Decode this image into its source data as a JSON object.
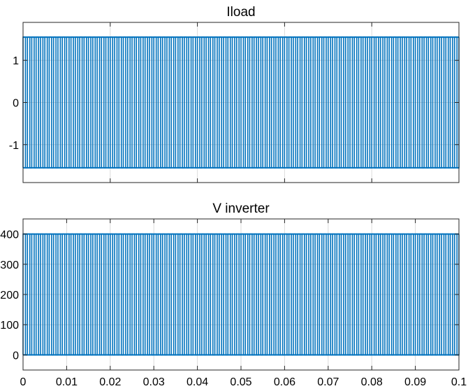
{
  "chart_data": [
    {
      "type": "line",
      "title": "Iload",
      "xlabel": "",
      "ylabel": "",
      "xlim": [
        0,
        0.1
      ],
      "ylim": [
        -1.9,
        1.9
      ],
      "x_ticks": [
        0,
        0.02,
        0.04,
        0.06,
        0.08,
        0.1
      ],
      "x_tick_labels": [],
      "y_ticks": [
        1,
        0,
        -1
      ],
      "y_tick_labels": [
        "1",
        "0",
        "-1"
      ],
      "grid": true,
      "series": [
        {
          "pulse_high": 1.55,
          "pulse_low": -1.55,
          "pulse_count": 100,
          "x_start": 0,
          "x_end": 0.1
        }
      ]
    },
    {
      "type": "line",
      "title": "V inverter",
      "xlabel": "",
      "ylabel": "",
      "xlim": [
        0,
        0.1
      ],
      "ylim": [
        -50,
        450
      ],
      "x_ticks": [
        0,
        0.01,
        0.02,
        0.03,
        0.04,
        0.05,
        0.06,
        0.07,
        0.08,
        0.09,
        0.1
      ],
      "x_tick_labels": [
        "0",
        "0.01",
        "0.02",
        "0.03",
        "0.04",
        "0.05",
        "0.06",
        "0.07",
        "0.08",
        "0.09",
        "0.1"
      ],
      "y_ticks": [
        400,
        300,
        200,
        100,
        0
      ],
      "y_tick_labels": [
        "400",
        "300",
        "200",
        "100",
        "0"
      ],
      "grid": true,
      "series": [
        {
          "pulse_high": 400,
          "pulse_low": 0,
          "pulse_count": 100,
          "x_start": 0,
          "x_end": 0.1
        }
      ]
    }
  ],
  "colors": {
    "series": "#0072bd",
    "grid": "#dcdcdc",
    "axes": "#262626"
  }
}
